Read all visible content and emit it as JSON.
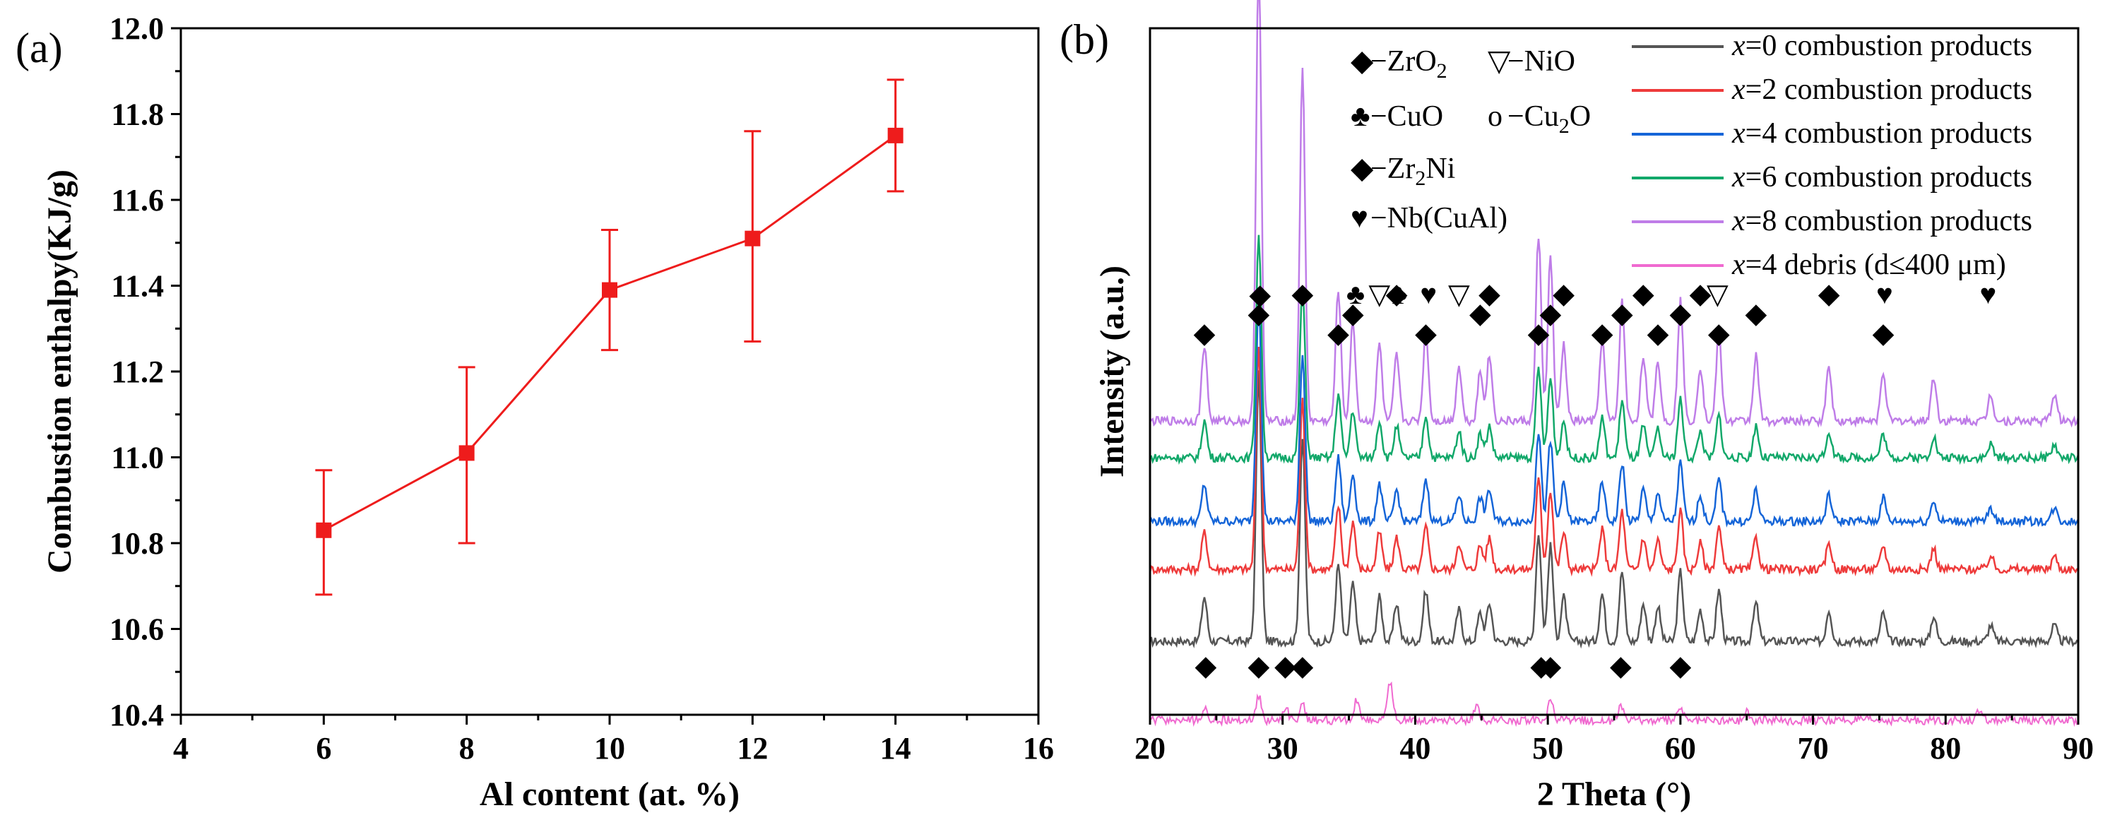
{
  "chart_data": [
    {
      "type": "line",
      "panel_label": "(a)",
      "title": "",
      "xlabel": "Al content (at. %)",
      "ylabel": "Combustion enthalpy(KJ/g)",
      "xlim": [
        4,
        16
      ],
      "ylim": [
        10.4,
        12.0
      ],
      "xticks": [
        "4",
        "6",
        "8",
        "10",
        "12",
        "14",
        "16"
      ],
      "yticks": [
        "10.4",
        "10.6",
        "10.8",
        "11.0",
        "11.2",
        "11.4",
        "11.6",
        "11.8",
        "12.0"
      ],
      "series": [
        {
          "name": "Combustion enthalpy",
          "color": "#ee1c1c",
          "marker": "square",
          "x": [
            6,
            8,
            10,
            12,
            14
          ],
          "y": [
            10.83,
            11.01,
            11.39,
            11.51,
            11.75
          ],
          "err_lo": [
            10.68,
            10.8,
            11.25,
            11.27,
            11.62
          ],
          "err_hi": [
            10.97,
            11.21,
            11.53,
            11.76,
            11.88
          ]
        }
      ]
    },
    {
      "type": "line",
      "panel_label": "(b)",
      "title": "",
      "xlabel": "2 Theta (°)",
      "ylabel": "Intensity (a.u.)",
      "xlim": [
        20,
        90
      ],
      "xticks": [
        "20",
        "30",
        "40",
        "50",
        "60",
        "70",
        "80",
        "90"
      ],
      "y_ticks_shown": false,
      "series": [
        {
          "name_x": "x",
          "name_rest": "=0 combustion products",
          "color": "#555555"
        },
        {
          "name_x": "x",
          "name_rest": "=2 combustion products",
          "color": "#ee3b3b"
        },
        {
          "name_x": "x",
          "name_rest": "=4 combustion products",
          "color": "#1565d8"
        },
        {
          "name_x": "x",
          "name_rest": "=6 combustion products",
          "color": "#12a86a"
        },
        {
          "name_x": "x",
          "name_rest": "=8 combustion products",
          "color": "#bf7de8"
        },
        {
          "name_x": "x",
          "name_rest": "=4 debris (d≤400 μm)",
          "color": "#f06ad0"
        }
      ],
      "phase_legend": [
        {
          "symbol": "◆",
          "label": "−ZrO",
          "sub": "2",
          "color": "#000000"
        },
        {
          "symbol": "▽",
          "label": "−NiO",
          "sub": "",
          "color": "#b8a000"
        },
        {
          "symbol": "♣",
          "label": "−CuO",
          "sub": "",
          "color": "#18c0d8"
        },
        {
          "symbol": "o",
          "label": "−Cu",
          "sub": "2",
          "tail": "O",
          "color": "#f07a00"
        },
        {
          "symbol": "◆",
          "label": "−Zr",
          "sub": "2",
          "tail": "Ni",
          "color": "#000000"
        },
        {
          "symbol": "♥",
          "label": "−Nb(CuAl)",
          "sub": "",
          "color": "#10e080"
        }
      ],
      "peaks_zro2": [
        24.1,
        28.2,
        31.5,
        34.2,
        35.3,
        38.6,
        40.8,
        44.9,
        45.6,
        49.3,
        50.2,
        51.2,
        54.1,
        55.6,
        57.2,
        58.3,
        60.0,
        61.5,
        62.9,
        65.7,
        71.2,
        75.3
      ],
      "peaks_other": [
        28.3,
        35.5,
        37.3,
        38.7,
        41.0,
        43.3,
        62.8,
        75.4,
        83.2
      ]
    }
  ]
}
